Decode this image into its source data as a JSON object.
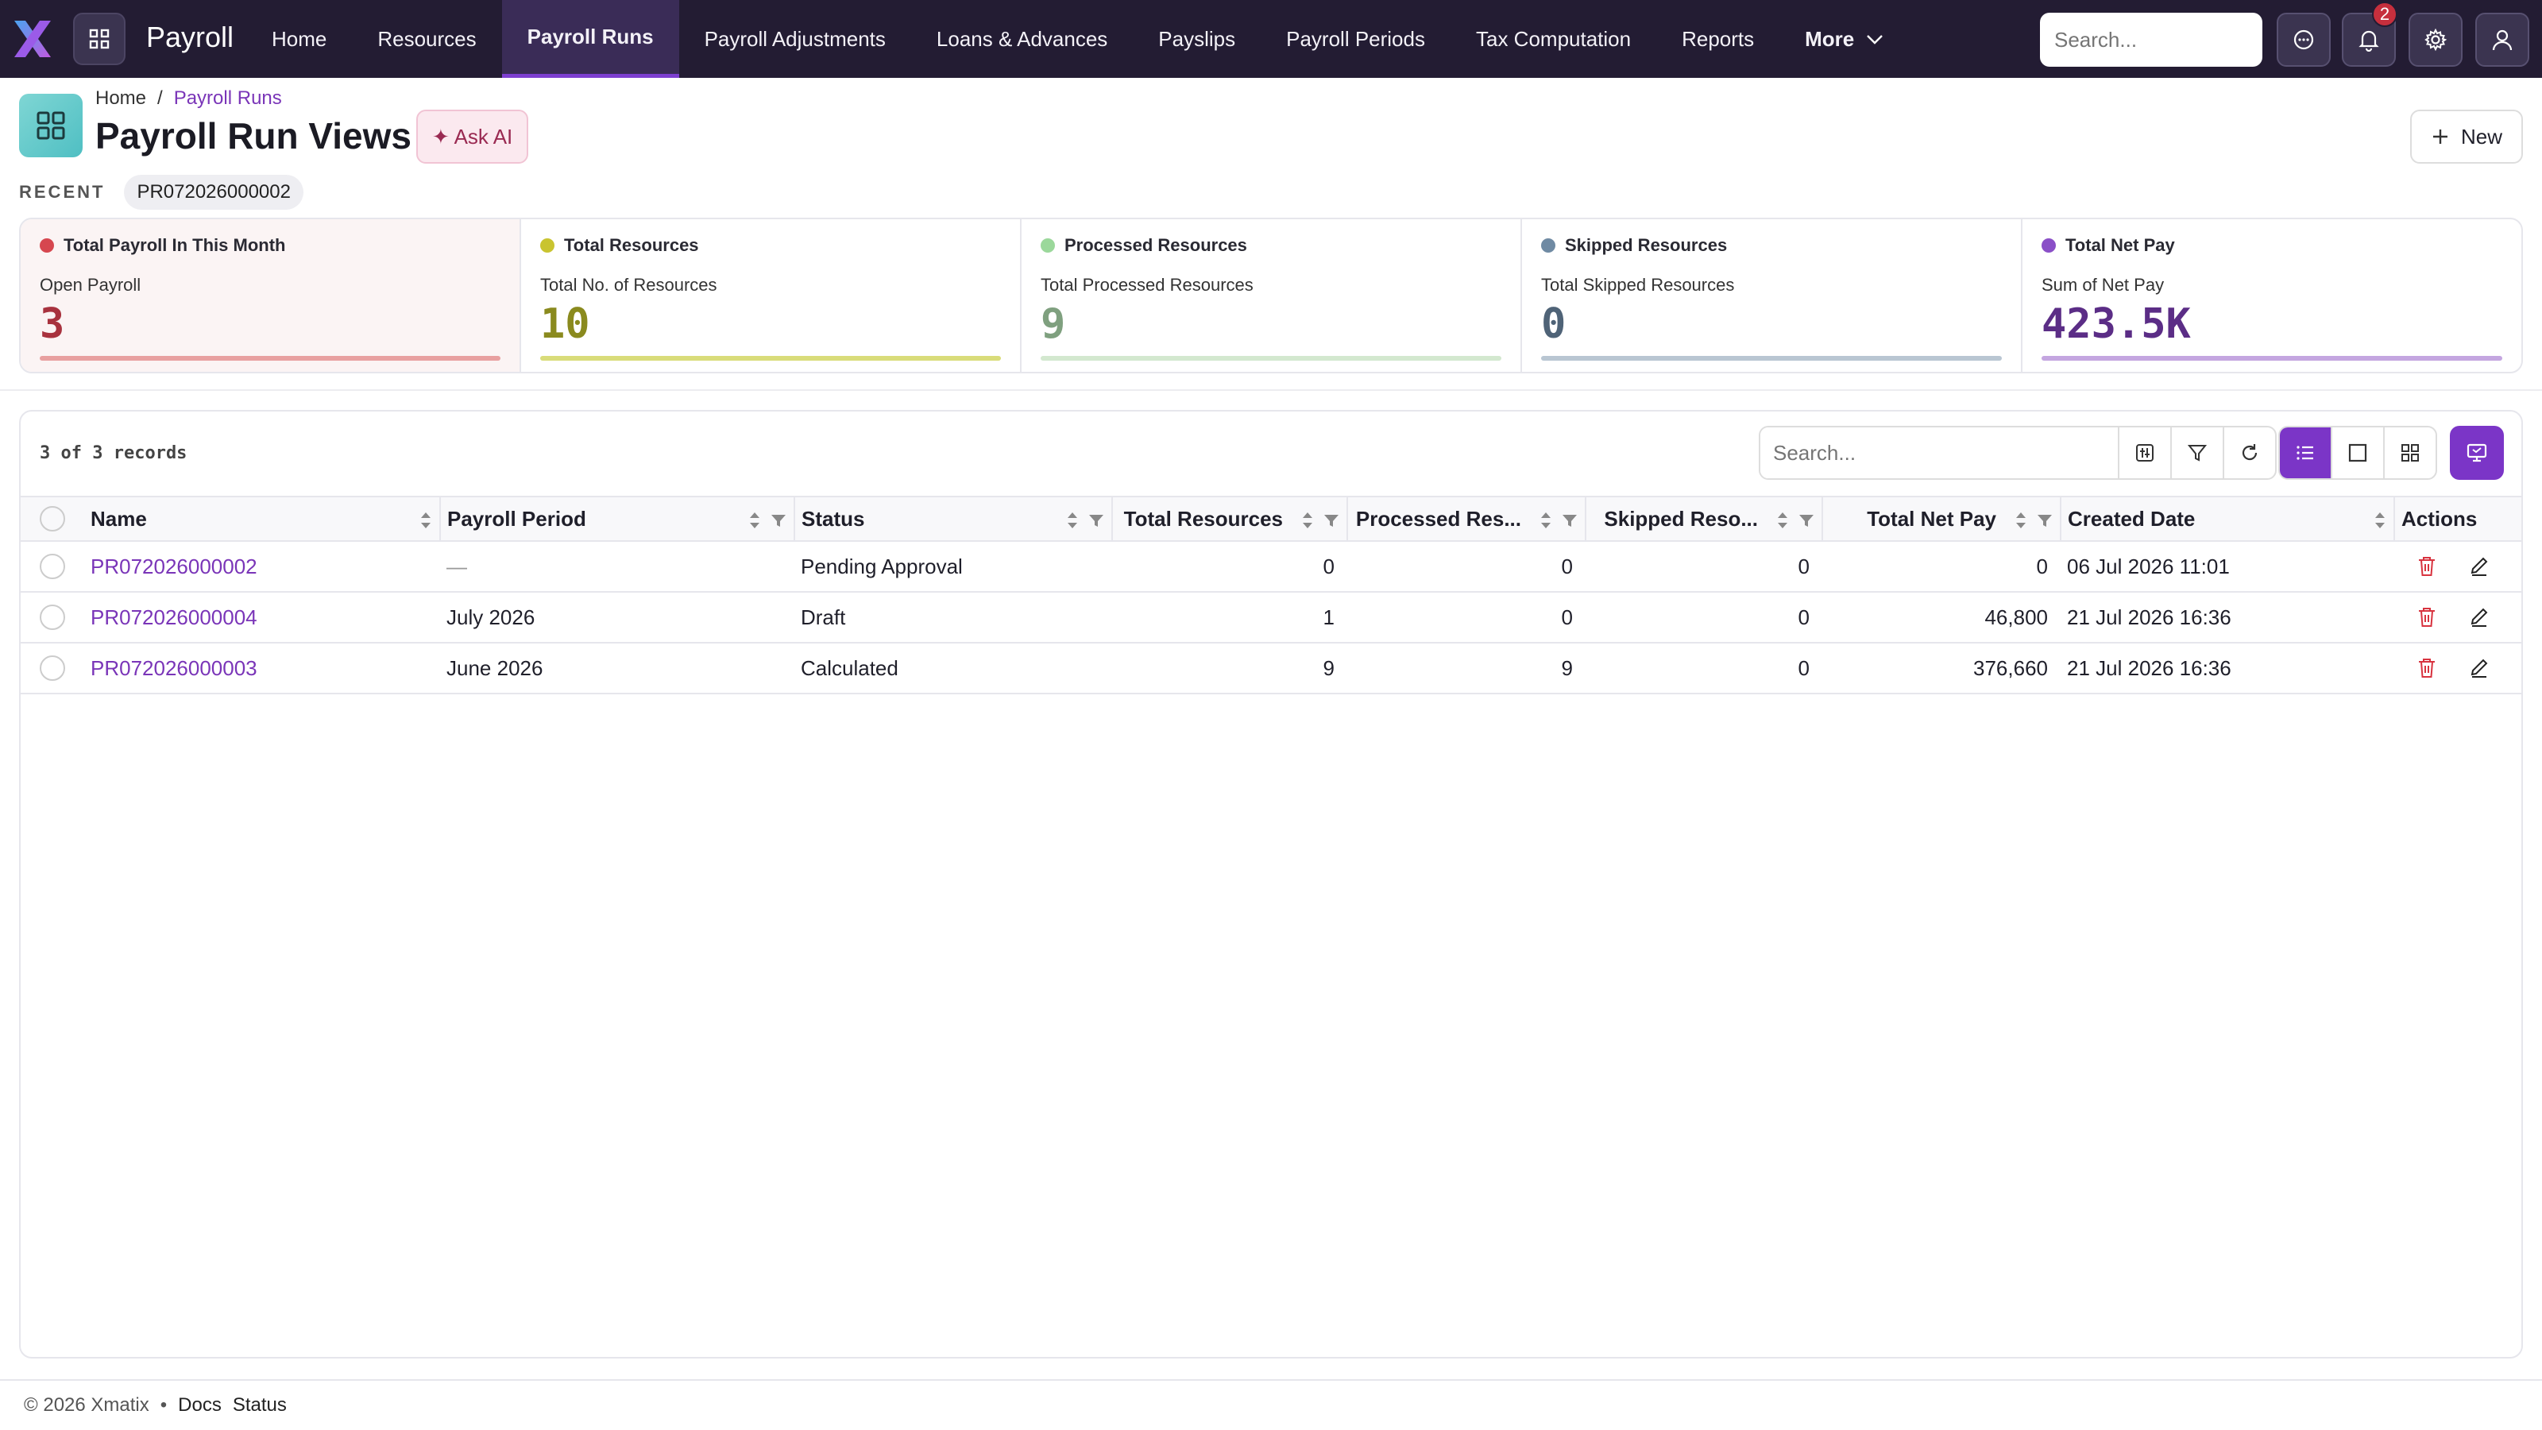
{
  "app": {
    "name": "Payroll",
    "logo_icon": "x-logo-icon"
  },
  "nav": {
    "items": [
      {
        "label": "Home"
      },
      {
        "label": "Resources"
      },
      {
        "label": "Payroll Runs",
        "active": true
      },
      {
        "label": "Payroll Adjustments"
      },
      {
        "label": "Loans & Advances"
      },
      {
        "label": "Payslips"
      },
      {
        "label": "Payroll Periods"
      },
      {
        "label": "Tax Computation"
      },
      {
        "label": "Reports"
      }
    ],
    "more_label": "More"
  },
  "topbar": {
    "search_placeholder": "Search...",
    "notification_count": "2"
  },
  "breadcrumb": {
    "home": "Home",
    "separator": "/",
    "current": "Payroll Runs"
  },
  "page": {
    "title": "Payroll Run Views",
    "ask_ai": "✦ Ask AI",
    "new_label": "New"
  },
  "recent": {
    "label": "RECENT",
    "items": [
      "PR072026000002"
    ]
  },
  "stats": [
    {
      "title": "Total Payroll In This Month",
      "sublabel": "Open Payroll",
      "value": "3",
      "color": "#a8323e",
      "dot": "#d6474f",
      "bar": "#e8a0a0"
    },
    {
      "title": "Total Resources",
      "sublabel": "Total No. of Resources",
      "value": "10",
      "color": "#8a8a1e",
      "dot": "#c9c430",
      "bar": "#d9dc7a"
    },
    {
      "title": "Processed Resources",
      "sublabel": "Total Processed Resources",
      "value": "9",
      "color": "#7fa07f",
      "dot": "#9bd89b",
      "bar": "#d3e8cf"
    },
    {
      "title": "Skipped Resources",
      "sublabel": "Total Skipped Resources",
      "value": "0",
      "color": "#4f6377",
      "dot": "#6f8aa3",
      "bar": "#b9c6d2"
    },
    {
      "title": "Total Net Pay",
      "sublabel": "Sum of Net Pay",
      "value": "423.5K",
      "color": "#5b2d86",
      "dot": "#8a4fc7",
      "bar": "#c4a6e0"
    }
  ],
  "list": {
    "record_count": "3 of 3 records",
    "search_placeholder": "Search...",
    "columns": {
      "name": "Name",
      "payroll_period": "Payroll Period",
      "status": "Status",
      "total_resources": "Total Resources",
      "processed_resources": "Processed Res...",
      "skipped_resources": "Skipped Reso...",
      "total_net_pay": "Total Net Pay",
      "created_date": "Created Date",
      "actions": "Actions"
    },
    "rows": [
      {
        "name": "PR072026000002",
        "payroll_period": "—",
        "status": "Pending Approval",
        "total_resources": "0",
        "processed_resources": "0",
        "skipped_resources": "0",
        "total_net_pay": "0",
        "created_date": "06 Jul 2026 11:01"
      },
      {
        "name": "PR072026000004",
        "payroll_period": "July 2026",
        "status": "Draft",
        "total_resources": "1",
        "processed_resources": "0",
        "skipped_resources": "0",
        "total_net_pay": "46,800",
        "created_date": "21 Jul 2026 16:36"
      },
      {
        "name": "PR072026000003",
        "payroll_period": "June 2026",
        "status": "Calculated",
        "total_resources": "9",
        "processed_resources": "9",
        "skipped_resources": "0",
        "total_net_pay": "376,660",
        "created_date": "21 Jul 2026 16:36"
      }
    ]
  },
  "footer": {
    "copyright": "© 2026 Xmatix",
    "bullet": "•",
    "docs": "Docs",
    "status": "Status"
  }
}
